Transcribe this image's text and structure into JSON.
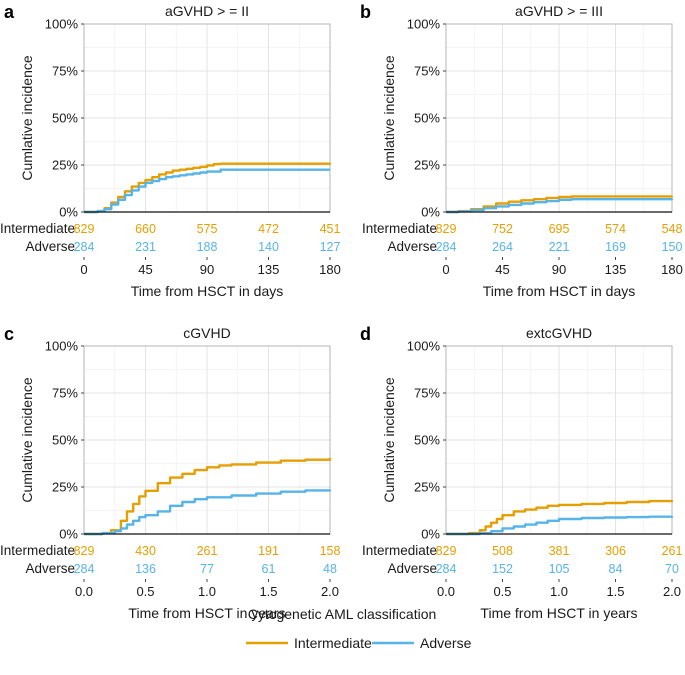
{
  "colors": {
    "intermediate": "#E69F00",
    "adverse": "#56B4E9"
  },
  "legend": {
    "title": "Cytogenetic AML classification",
    "items": [
      "Intermediate",
      "Adverse"
    ]
  },
  "chart_data": [
    {
      "type": "line",
      "panel_label": "a",
      "title": "aGVHD > = II",
      "xlabel": "Time from HSCT in days",
      "ylabel": "Cumlative incidence",
      "xlim": [
        0,
        180
      ],
      "ylim": [
        0,
        1
      ],
      "xticks": [
        0,
        45,
        90,
        135,
        180
      ],
      "xtick_labels": [
        "0",
        "45",
        "90",
        "135",
        "180"
      ],
      "yticks": [
        0,
        0.25,
        0.5,
        0.75,
        1
      ],
      "ytick_labels": [
        "0%",
        "25%",
        "50%",
        "75%",
        "100%"
      ],
      "series": [
        {
          "name": "Intermediate",
          "x": [
            0,
            10,
            15,
            20,
            25,
            30,
            35,
            40,
            45,
            50,
            55,
            60,
            65,
            70,
            75,
            80,
            85,
            90,
            95,
            100,
            180
          ],
          "y": [
            0,
            0.005,
            0.02,
            0.05,
            0.08,
            0.11,
            0.135,
            0.155,
            0.17,
            0.185,
            0.2,
            0.21,
            0.22,
            0.225,
            0.23,
            0.235,
            0.24,
            0.248,
            0.255,
            0.257,
            0.26
          ]
        },
        {
          "name": "Adverse",
          "x": [
            0,
            10,
            15,
            20,
            25,
            30,
            35,
            40,
            45,
            50,
            55,
            60,
            65,
            70,
            75,
            80,
            85,
            90,
            100,
            180
          ],
          "y": [
            0,
            0.005,
            0.015,
            0.04,
            0.065,
            0.09,
            0.115,
            0.135,
            0.155,
            0.165,
            0.175,
            0.185,
            0.19,
            0.195,
            0.2,
            0.205,
            0.21,
            0.215,
            0.225,
            0.225
          ]
        }
      ],
      "risk_table": {
        "times": [
          0,
          45,
          90,
          135,
          180
        ],
        "rows": [
          {
            "label": "Intermediate",
            "values": [
              "829",
              "660",
              "575",
              "472",
              "451"
            ]
          },
          {
            "label": "Adverse",
            "values": [
              "284",
              "231",
              "188",
              "140",
              "127"
            ]
          }
        ]
      }
    },
    {
      "type": "line",
      "panel_label": "b",
      "title": "aGVHD > = III",
      "xlabel": "Time from HSCT in days",
      "ylabel": "Cumlative incidence",
      "xlim": [
        0,
        180
      ],
      "ylim": [
        0,
        1
      ],
      "xticks": [
        0,
        45,
        90,
        135,
        180
      ],
      "xtick_labels": [
        "0",
        "45",
        "90",
        "135",
        "180"
      ],
      "yticks": [
        0,
        0.25,
        0.5,
        0.75,
        1
      ],
      "ytick_labels": [
        "0%",
        "25%",
        "50%",
        "75%",
        "100%"
      ],
      "series": [
        {
          "name": "Intermediate",
          "x": [
            0,
            10,
            20,
            30,
            40,
            50,
            60,
            70,
            80,
            90,
            100,
            180
          ],
          "y": [
            0,
            0.005,
            0.015,
            0.03,
            0.045,
            0.055,
            0.062,
            0.068,
            0.075,
            0.08,
            0.083,
            0.085
          ]
        },
        {
          "name": "Adverse",
          "x": [
            0,
            10,
            20,
            30,
            40,
            50,
            60,
            70,
            80,
            90,
            100,
            180
          ],
          "y": [
            0,
            0.003,
            0.01,
            0.02,
            0.03,
            0.038,
            0.045,
            0.052,
            0.058,
            0.065,
            0.068,
            0.07
          ]
        }
      ],
      "risk_table": {
        "times": [
          0,
          45,
          90,
          135,
          180
        ],
        "rows": [
          {
            "label": "Intermediate",
            "values": [
              "829",
              "752",
              "695",
              "574",
              "548"
            ]
          },
          {
            "label": "Adverse",
            "values": [
              "284",
              "264",
              "221",
              "169",
              "150"
            ]
          }
        ]
      }
    },
    {
      "type": "line",
      "panel_label": "c",
      "title": "cGVHD",
      "xlabel": "Time from HSCT in years",
      "ylabel": "Cumlative incidence",
      "xlim": [
        0,
        2
      ],
      "ylim": [
        0,
        1
      ],
      "xticks": [
        0,
        0.5,
        1,
        1.5,
        2
      ],
      "xtick_labels": [
        "0.0",
        "0.5",
        "1.0",
        "1.5",
        "2.0"
      ],
      "yticks": [
        0,
        0.25,
        0.5,
        0.75,
        1
      ],
      "ytick_labels": [
        "0%",
        "25%",
        "50%",
        "75%",
        "100%"
      ],
      "series": [
        {
          "name": "Intermediate",
          "x": [
            0,
            0.15,
            0.22,
            0.3,
            0.35,
            0.4,
            0.45,
            0.5,
            0.6,
            0.7,
            0.8,
            0.9,
            1.0,
            1.1,
            1.2,
            1.4,
            1.6,
            1.8,
            2.0
          ],
          "y": [
            0,
            0.005,
            0.02,
            0.07,
            0.12,
            0.16,
            0.2,
            0.23,
            0.27,
            0.3,
            0.32,
            0.34,
            0.355,
            0.365,
            0.37,
            0.38,
            0.39,
            0.395,
            0.405
          ]
        },
        {
          "name": "Adverse",
          "x": [
            0,
            0.15,
            0.25,
            0.3,
            0.35,
            0.4,
            0.45,
            0.5,
            0.6,
            0.7,
            0.8,
            0.9,
            1.0,
            1.2,
            1.4,
            1.6,
            1.8,
            2.0
          ],
          "y": [
            0,
            0.005,
            0.015,
            0.03,
            0.05,
            0.07,
            0.09,
            0.1,
            0.12,
            0.15,
            0.17,
            0.185,
            0.195,
            0.205,
            0.215,
            0.225,
            0.232,
            0.235
          ]
        }
      ],
      "risk_table": {
        "times": [
          0,
          0.5,
          1,
          1.5,
          2
        ],
        "rows": [
          {
            "label": "Intermediate",
            "values": [
              "829",
              "430",
              "261",
              "191",
              "158"
            ]
          },
          {
            "label": "Adverse",
            "values": [
              "284",
              "136",
              "77",
              "61",
              "48"
            ]
          }
        ]
      }
    },
    {
      "type": "line",
      "panel_label": "d",
      "title": "extcGVHD",
      "xlabel": "Time from HSCT in years",
      "ylabel": "Cumlative incidence",
      "xlim": [
        0,
        2
      ],
      "ylim": [
        0,
        1
      ],
      "xticks": [
        0,
        0.5,
        1,
        1.5,
        2
      ],
      "xtick_labels": [
        "0.0",
        "0.5",
        "1.0",
        "1.5",
        "2.0"
      ],
      "yticks": [
        0,
        0.25,
        0.5,
        0.75,
        1
      ],
      "ytick_labels": [
        "0%",
        "25%",
        "50%",
        "75%",
        "100%"
      ],
      "series": [
        {
          "name": "Intermediate",
          "x": [
            0,
            0.2,
            0.3,
            0.35,
            0.4,
            0.45,
            0.5,
            0.6,
            0.7,
            0.8,
            0.9,
            1.0,
            1.2,
            1.4,
            1.6,
            1.8,
            2.0
          ],
          "y": [
            0,
            0.005,
            0.02,
            0.04,
            0.06,
            0.08,
            0.1,
            0.12,
            0.13,
            0.14,
            0.15,
            0.155,
            0.16,
            0.165,
            0.17,
            0.175,
            0.18
          ]
        },
        {
          "name": "Adverse",
          "x": [
            0,
            0.3,
            0.4,
            0.5,
            0.6,
            0.7,
            0.8,
            0.9,
            1.0,
            1.2,
            1.4,
            1.6,
            1.8,
            2.0
          ],
          "y": [
            0,
            0.005,
            0.015,
            0.03,
            0.04,
            0.05,
            0.06,
            0.07,
            0.08,
            0.085,
            0.088,
            0.09,
            0.092,
            0.095
          ]
        }
      ],
      "risk_table": {
        "times": [
          0,
          0.5,
          1,
          1.5,
          2
        ],
        "rows": [
          {
            "label": "Intermediate",
            "values": [
              "829",
              "508",
              "381",
              "306",
              "261"
            ]
          },
          {
            "label": "Adverse",
            "values": [
              "284",
              "152",
              "105",
              "84",
              "70"
            ]
          }
        ]
      }
    }
  ]
}
